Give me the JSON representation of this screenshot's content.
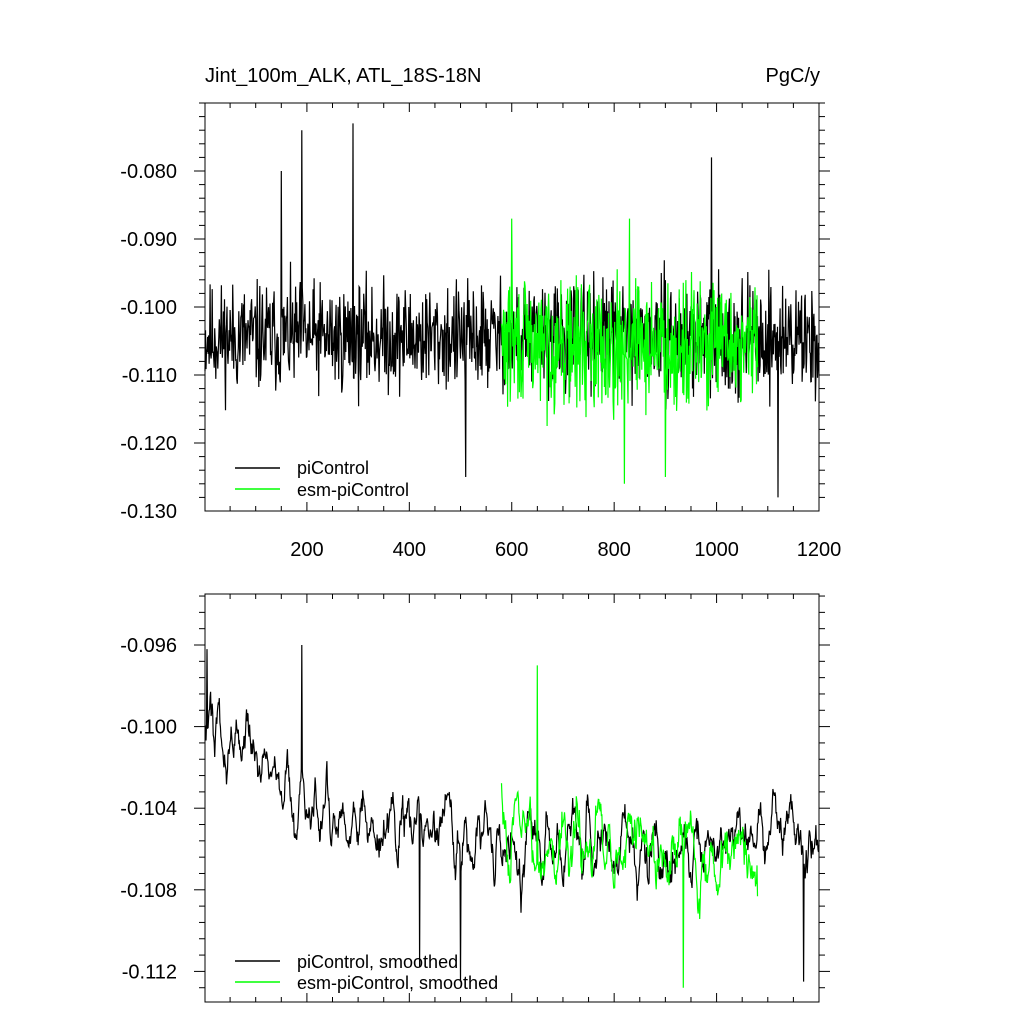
{
  "chart_data": [
    {
      "type": "line",
      "title": "Jint_100m_ALK, ATL_18S-18N",
      "units": "PgC/y",
      "xlim": [
        1,
        1200
      ],
      "ylim": [
        -0.13,
        -0.07
      ],
      "x_ticks": [
        200,
        400,
        600,
        800,
        1000,
        1200
      ],
      "x_tick_labels": [
        "200",
        "400",
        "600",
        "800",
        "1000",
        "1200"
      ],
      "y_ticks": [
        -0.08,
        -0.09,
        -0.1,
        -0.11,
        -0.12,
        -0.13
      ],
      "y_tick_labels": [
        "-0.080",
        "-0.090",
        "-0.100",
        "-0.110",
        "-0.120",
        "-0.130"
      ],
      "legend_position": "bottom-left",
      "series": [
        {
          "name": "piControl",
          "color": "#000000",
          "x": [
            1,
            1200
          ],
          "y_mean": -0.1045,
          "noise_amplitude": 0.006,
          "notable_points": [
            [
              150,
              -0.08
            ],
            [
              190,
              -0.074
            ],
            [
              290,
              -0.073
            ],
            [
              510,
              -0.125
            ],
            [
              990,
              -0.078
            ],
            [
              1120,
              -0.128
            ]
          ]
        },
        {
          "name": "esm-piControl",
          "color": "#00ff00",
          "x": [
            580,
            1080
          ],
          "y_mean": -0.1055,
          "noise_amplitude": 0.007,
          "notable_points": [
            [
              600,
              -0.087
            ],
            [
              820,
              -0.126
            ],
            [
              830,
              -0.087
            ],
            [
              900,
              -0.125
            ]
          ]
        }
      ]
    },
    {
      "type": "line",
      "xlim": [
        1,
        1200
      ],
      "ylim": [
        -0.1135,
        -0.0935
      ],
      "x_ticks": [
        200,
        400,
        600,
        800,
        1000,
        1200
      ],
      "y_ticks": [
        -0.096,
        -0.1,
        -0.104,
        -0.108,
        -0.112
      ],
      "y_tick_labels": [
        "-0.096",
        "-0.100",
        "-0.104",
        "-0.108",
        "-0.112"
      ],
      "legend_position": "bottom-left",
      "series": [
        {
          "name": "piControl, smoothed",
          "color": "#000000",
          "x": [
            1,
            1200
          ],
          "trend": [
            [
              1,
              -0.1
            ],
            [
              100,
              -0.101
            ],
            [
              200,
              -0.104
            ],
            [
              400,
              -0.105
            ],
            [
              600,
              -0.1055
            ],
            [
              800,
              -0.106
            ],
            [
              1000,
              -0.1055
            ],
            [
              1200,
              -0.1045
            ]
          ],
          "noise_amplitude": 0.0018,
          "notable_points": [
            [
              5,
              -0.0962
            ],
            [
              190,
              -0.096
            ],
            [
              420,
              -0.1118
            ],
            [
              500,
              -0.1125
            ],
            [
              1170,
              -0.1125
            ]
          ]
        },
        {
          "name": "esm-piControl, smoothed",
          "color": "#00ff00",
          "x": [
            580,
            1080
          ],
          "trend": [
            [
              580,
              -0.105
            ],
            [
              700,
              -0.1055
            ],
            [
              900,
              -0.1065
            ],
            [
              1080,
              -0.106
            ]
          ],
          "noise_amplitude": 0.002,
          "notable_points": [
            [
              650,
              -0.097
            ],
            [
              935,
              -0.1128
            ]
          ]
        }
      ]
    }
  ]
}
